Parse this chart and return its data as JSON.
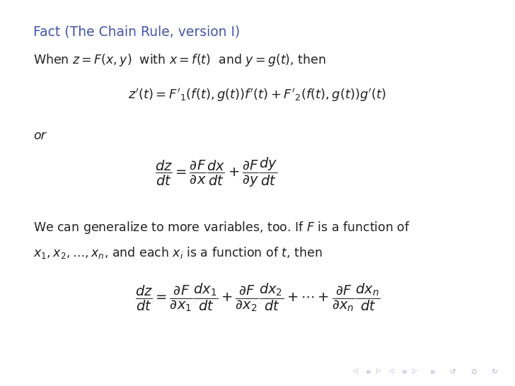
{
  "background_color": "#ffffff",
  "fact_color": "#4455aa",
  "text_color": "#222222",
  "fact_label": "Fact (The Chain Rule, version I)",
  "line1": "When $z = F(x, y)$  with $x = f(t)$  and $y = g(t)$, then",
  "eq1": "$z'(t) = F'_1(f(t),g(t))f'(t) + F'_2(f(t),g(t))g'(t)$",
  "or_text": "or",
  "eq2": "$\\dfrac{dz}{dt} = \\dfrac{\\partial F}{\\partial x}\\dfrac{dx}{dt} + \\dfrac{\\partial F}{\\partial y}\\dfrac{dy}{dt}$",
  "text2a": "We can generalize to more variables, too. If $F$ is a function of",
  "text2b": "$x_1, x_2, \\ldots, x_n$, and each $x_i$ is a function of $t$, then",
  "eq3": "$\\dfrac{dz}{dt} = \\dfrac{\\partial F}{\\partial x_1}\\dfrac{dx_1}{dt} + \\dfrac{\\partial F}{\\partial x_2}\\dfrac{dx_2}{dt} + \\cdots + \\dfrac{\\partial F}{\\partial x_n}\\dfrac{dx_n}{dt}$",
  "nav_color": "#aaaacc",
  "figsize": [
    7.28,
    5.46
  ],
  "dpi": 100,
  "fact_fontsize": 13.5,
  "body_fontsize": 12.5,
  "eq_fontsize": 13,
  "eq_large_fontsize": 14
}
